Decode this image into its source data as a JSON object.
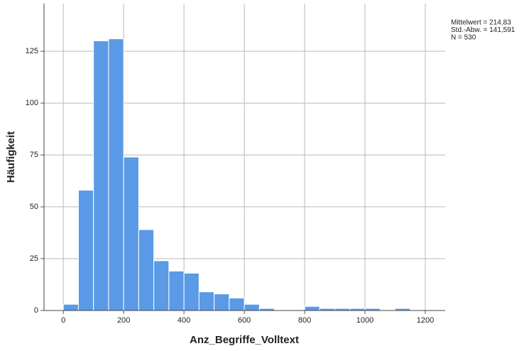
{
  "chart_data": {
    "type": "histogram",
    "x_label": "Anz_Begriffe_Volltext",
    "y_label": "Häufigkeit",
    "bins": [
      0,
      50,
      100,
      150,
      200,
      250,
      300,
      350,
      400,
      450,
      500,
      550,
      600,
      650,
      700,
      750,
      800,
      850,
      900,
      950,
      1000,
      1050,
      1100,
      1150
    ],
    "counts": [
      3,
      58,
      130,
      131,
      74,
      39,
      24,
      19,
      18,
      9,
      8,
      6,
      3,
      1,
      0,
      0,
      2,
      1,
      1,
      1,
      1,
      0,
      1
    ],
    "color": "#5a9ae6",
    "xlim": [
      -64,
      1266
    ],
    "xticks": [
      0,
      200,
      400,
      600,
      800,
      1000,
      1200
    ],
    "ylim": [
      0,
      148
    ],
    "yticks": [
      0,
      25,
      50,
      75,
      100,
      125
    ],
    "grid": true,
    "statistics": [
      "Mittelwert = 214,83",
      "Std.-Abw. = 141,591",
      "N = 530"
    ]
  }
}
